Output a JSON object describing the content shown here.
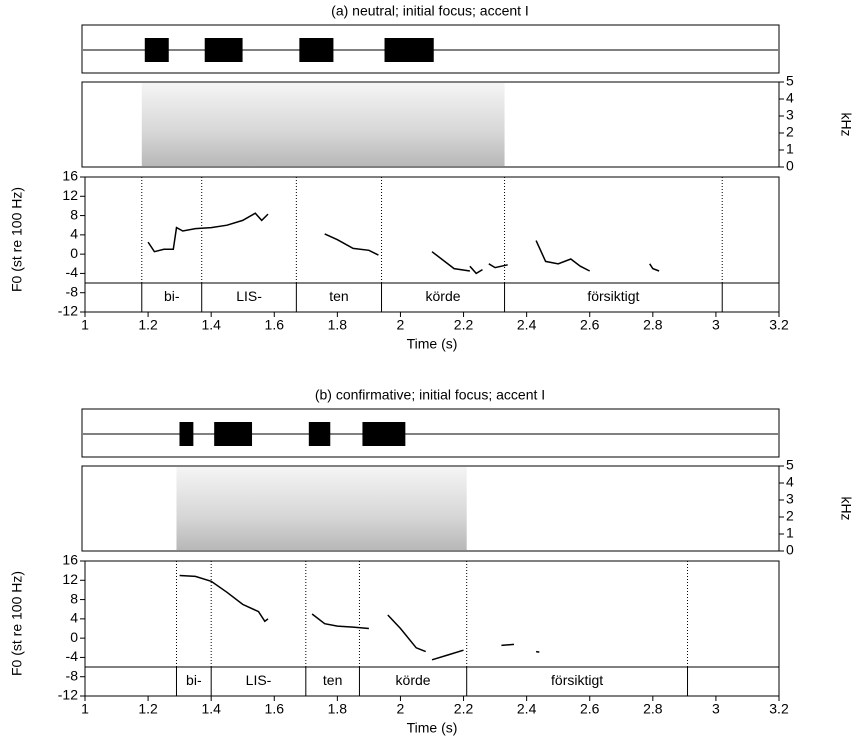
{
  "chart_data": [
    {
      "type": "line",
      "title": "(a) neutral; initial focus; accent I",
      "xlabel": "Time (s)",
      "ylabel": "F0 (st re 100 Hz)",
      "xlim": [
        1,
        3.2
      ],
      "xticks": [
        1,
        1.2,
        1.4,
        1.6,
        1.8,
        2,
        2.2,
        2.4,
        2.6,
        2.8,
        3,
        3.2
      ],
      "ylim": [
        -12,
        16
      ],
      "yticks": [
        16,
        12,
        8,
        4,
        0,
        -4,
        -8,
        -12
      ],
      "spec_label": "kHz",
      "spec_ylim": [
        0,
        5
      ],
      "spec_yticks": [
        5,
        4,
        3,
        2,
        1,
        0
      ],
      "boundaries": [
        1.18,
        1.37,
        1.67,
        1.94,
        2.33,
        3.02
      ],
      "labels": [
        null,
        "bi-",
        "LIS-",
        "ten",
        "körde",
        "försiktigt",
        null
      ],
      "f0": {
        "color": "#000000",
        "x": [
          1.2,
          1.22,
          1.25,
          1.28,
          1.29,
          1.31,
          1.35,
          1.4,
          1.45,
          1.5,
          1.54,
          1.56,
          1.58,
          null,
          1.76,
          1.8,
          1.85,
          1.9,
          1.93,
          null,
          2.1,
          2.17,
          2.22,
          null,
          2.22,
          2.24,
          2.26,
          null,
          2.28,
          2.3,
          2.34,
          null,
          2.43,
          2.46,
          2.5,
          2.54,
          2.57,
          2.6,
          null,
          2.79,
          2.8,
          2.82
        ],
        "values": [
          2.5,
          0.5,
          1,
          1,
          5.5,
          4.8,
          5.3,
          5.5,
          6,
          7,
          8.5,
          7,
          8.3,
          null,
          4.2,
          3,
          1.2,
          0.8,
          -0.2,
          null,
          0.5,
          -3,
          -3.5,
          null,
          -2.5,
          -4,
          -3.2,
          null,
          -2,
          -2.8,
          -2.2,
          null,
          2.8,
          -1.5,
          -2,
          -1,
          -2.5,
          -3.5,
          null,
          -2,
          -3,
          -3.5
        ]
      }
    },
    {
      "type": "line",
      "title": "(b) confirmative; initial focus; accent I",
      "xlabel": "Time (s)",
      "ylabel": "F0 (st re 100 Hz)",
      "xlim": [
        1,
        3.2
      ],
      "xticks": [
        1,
        1.2,
        1.4,
        1.6,
        1.8,
        2,
        2.2,
        2.4,
        2.6,
        2.8,
        3,
        3.2
      ],
      "ylim": [
        -12,
        16
      ],
      "yticks": [
        16,
        12,
        8,
        4,
        0,
        -4,
        -8,
        -12
      ],
      "spec_label": "kHz",
      "spec_ylim": [
        0,
        5
      ],
      "spec_yticks": [
        5,
        4,
        3,
        2,
        1,
        0
      ],
      "boundaries": [
        1.29,
        1.4,
        1.7,
        1.87,
        2.21,
        2.91
      ],
      "labels": [
        null,
        "bi-",
        "LIS-",
        "ten",
        "körde",
        "försiktigt",
        null
      ],
      "f0": {
        "color": "#000000",
        "x": [
          1.3,
          1.35,
          1.4,
          1.45,
          1.5,
          1.55,
          1.57,
          1.58,
          null,
          1.72,
          1.76,
          1.8,
          1.85,
          1.9,
          null,
          1.96,
          2.0,
          2.05,
          2.08,
          null,
          2.1,
          2.15,
          2.2,
          null,
          2.32,
          2.36,
          null,
          2.43,
          2.44
        ],
        "values": [
          13,
          12.8,
          11.8,
          9.5,
          7,
          5.5,
          3.5,
          4,
          null,
          5,
          3,
          2.5,
          2.3,
          2,
          null,
          4.8,
          2,
          -2,
          -2.8,
          null,
          -4.5,
          -3.5,
          -2.5,
          null,
          -1.5,
          -1.3,
          null,
          -2.8,
          -2.9
        ]
      }
    }
  ]
}
